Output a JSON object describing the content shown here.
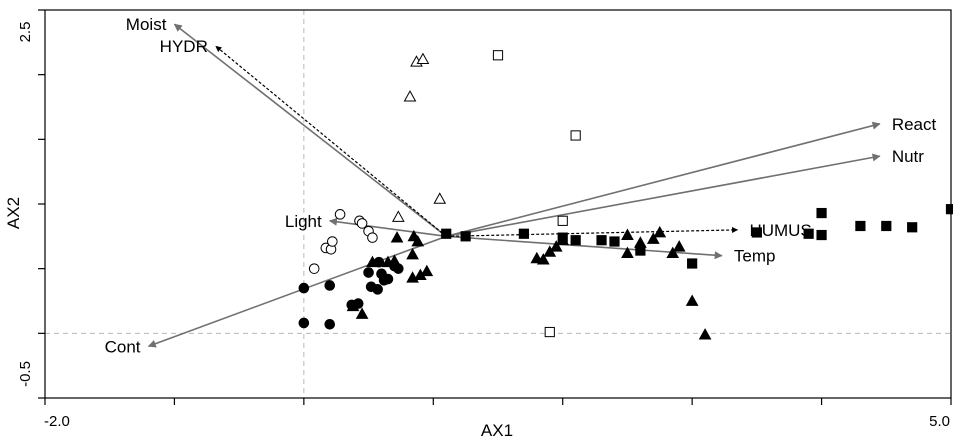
{
  "chart_data": {
    "type": "scatter",
    "title": "",
    "xlabel": "AX1",
    "ylabel": "AX2",
    "xlim": [
      -2.0,
      5.0
    ],
    "ylim": [
      -0.5,
      2.5
    ],
    "x_tick_labels": [
      "-2.0",
      "5.0"
    ],
    "y_tick_labels": [
      "-0.5",
      "2.5"
    ],
    "grid": false,
    "zero_lines": true,
    "biplot_origin": [
      1.1,
      0.75
    ],
    "vectors": [
      {
        "name": "Moist",
        "x": -1.0,
        "y": 2.39,
        "style": "solid",
        "color": "#707070"
      },
      {
        "name": "React",
        "x": 4.45,
        "y": 1.62,
        "style": "solid",
        "color": "#707070"
      },
      {
        "name": "Nutr",
        "x": 4.45,
        "y": 1.37,
        "style": "solid",
        "color": "#707070"
      },
      {
        "name": "Temp",
        "x": 3.23,
        "y": 0.6,
        "style": "solid",
        "color": "#707070"
      },
      {
        "name": "Cont",
        "x": -1.2,
        "y": -0.1,
        "style": "solid",
        "color": "#707070"
      },
      {
        "name": "Light",
        "x": 0.2,
        "y": 0.87,
        "style": "solid",
        "color": "#707070"
      },
      {
        "name": "HYDR",
        "x": -0.68,
        "y": 2.22,
        "style": "dashed",
        "color": "#000000"
      },
      {
        "name": "HUMUS",
        "x": 3.35,
        "y": 0.8,
        "style": "dashed",
        "color": "#000000"
      }
    ],
    "series": [
      {
        "marker": "filled-circle",
        "points": [
          [
            0.0,
            0.35
          ],
          [
            0.0,
            0.08
          ],
          [
            0.2,
            0.07
          ],
          [
            0.2,
            0.37
          ],
          [
            0.37,
            0.22
          ],
          [
            0.42,
            0.23
          ],
          [
            0.6,
            0.46
          ],
          [
            0.62,
            0.41
          ],
          [
            0.65,
            0.42
          ],
          [
            0.73,
            0.5
          ],
          [
            0.7,
            0.52
          ],
          [
            0.58,
            0.55
          ],
          [
            0.52,
            0.36
          ],
          [
            0.57,
            0.34
          ],
          [
            0.5,
            0.47
          ]
        ]
      },
      {
        "marker": "open-circle",
        "points": [
          [
            0.08,
            0.5
          ],
          [
            0.17,
            0.66
          ],
          [
            0.21,
            0.65
          ],
          [
            0.22,
            0.71
          ],
          [
            0.28,
            0.92
          ],
          [
            0.43,
            0.87
          ],
          [
            0.45,
            0.85
          ],
          [
            0.5,
            0.79
          ],
          [
            0.53,
            0.74
          ]
        ]
      },
      {
        "marker": "filled-triangle",
        "points": [
          [
            0.38,
            0.21
          ],
          [
            0.45,
            0.15
          ],
          [
            0.53,
            0.55
          ],
          [
            0.65,
            0.55
          ],
          [
            0.7,
            0.56
          ],
          [
            0.72,
            0.74
          ],
          [
            0.85,
            0.75
          ],
          [
            0.84,
            0.43
          ],
          [
            0.84,
            0.61
          ],
          [
            0.88,
            0.71
          ],
          [
            0.9,
            0.45
          ],
          [
            0.95,
            0.48
          ],
          [
            1.8,
            0.58
          ],
          [
            1.85,
            0.57
          ],
          [
            1.9,
            0.63
          ],
          [
            1.95,
            0.67
          ],
          [
            2.0,
            0.72
          ],
          [
            2.5,
            0.62
          ],
          [
            2.5,
            0.76
          ],
          [
            2.6,
            0.7
          ],
          [
            2.7,
            0.73
          ],
          [
            2.75,
            0.78
          ],
          [
            2.85,
            0.62
          ],
          [
            2.9,
            0.67
          ],
          [
            3.0,
            0.25
          ],
          [
            3.1,
            -0.01
          ]
        ]
      },
      {
        "marker": "open-triangle",
        "points": [
          [
            0.73,
            0.9
          ],
          [
            0.82,
            1.83
          ],
          [
            0.87,
            2.1
          ],
          [
            0.92,
            2.12
          ],
          [
            1.05,
            1.04
          ]
        ]
      },
      {
        "marker": "filled-square",
        "points": [
          [
            1.1,
            0.77
          ],
          [
            1.25,
            0.75
          ],
          [
            1.7,
            0.77
          ],
          [
            2.0,
            0.74
          ],
          [
            2.1,
            0.72
          ],
          [
            2.3,
            0.72
          ],
          [
            2.4,
            0.71
          ],
          [
            2.6,
            0.64
          ],
          [
            3.0,
            0.54
          ],
          [
            3.5,
            0.78
          ],
          [
            3.9,
            0.77
          ],
          [
            4.0,
            0.76
          ],
          [
            4.0,
            0.93
          ],
          [
            4.3,
            0.83
          ],
          [
            4.5,
            0.83
          ],
          [
            4.7,
            0.82
          ],
          [
            5.0,
            0.96
          ]
        ]
      },
      {
        "marker": "open-square",
        "points": [
          [
            1.5,
            2.15
          ],
          [
            2.1,
            1.53
          ],
          [
            2.0,
            0.87
          ],
          [
            1.9,
            0.01
          ]
        ]
      }
    ]
  }
}
